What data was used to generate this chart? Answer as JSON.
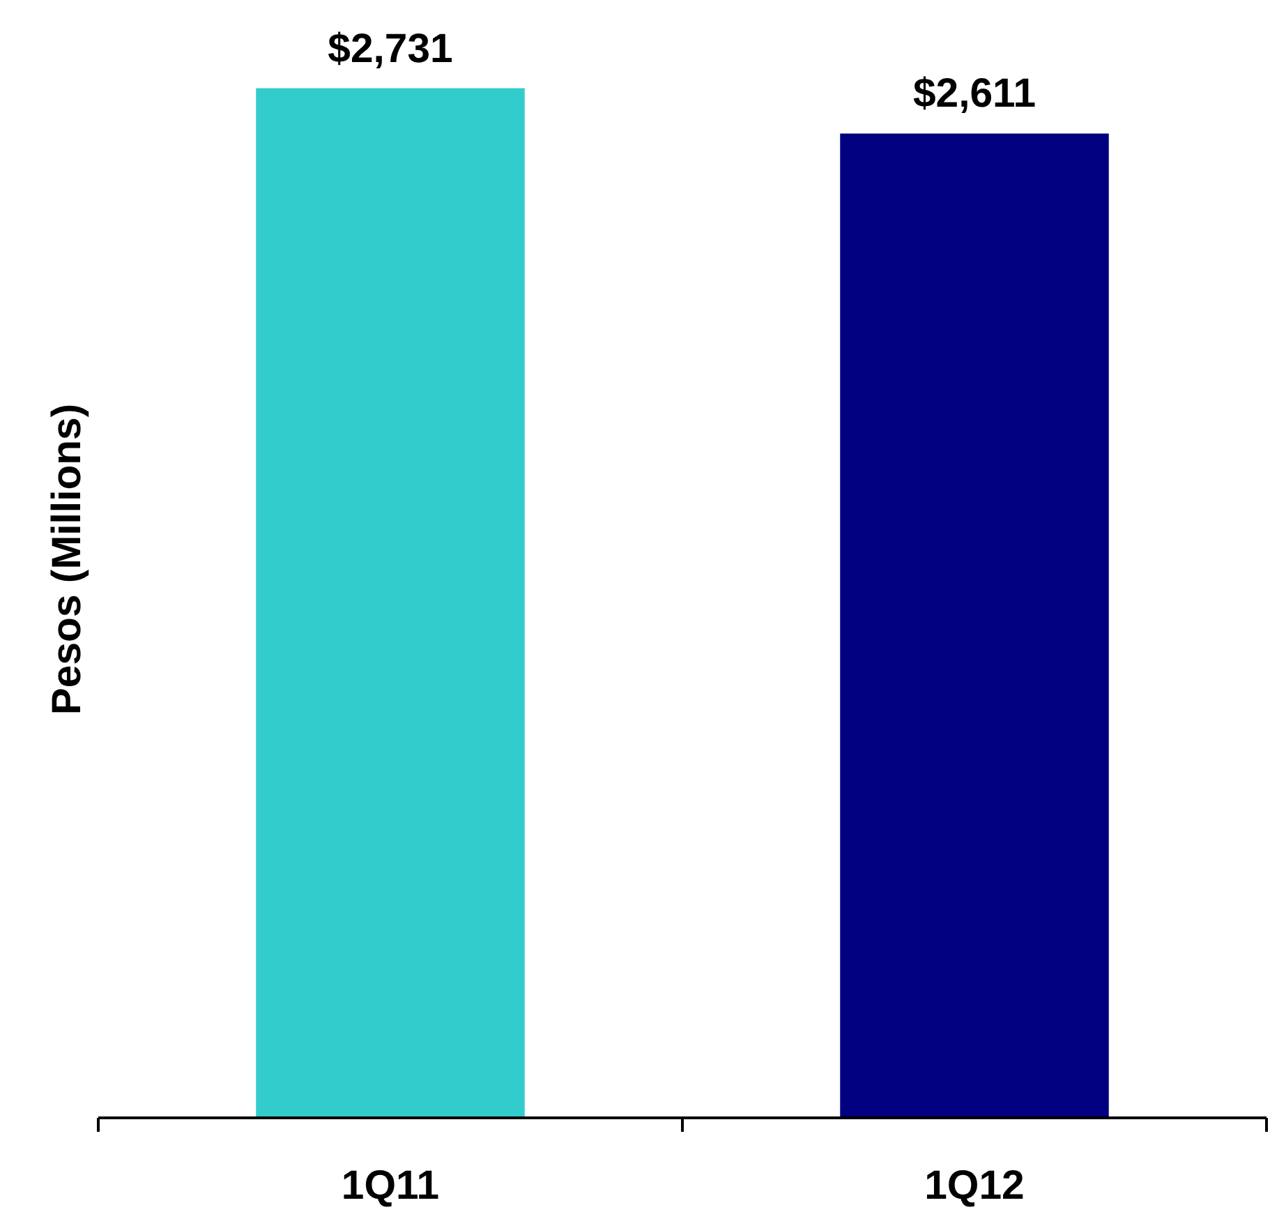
{
  "chart_data": {
    "type": "bar",
    "ylabel": "Pesos (Millions)",
    "categories": [
      "1Q11",
      "1Q12"
    ],
    "values": [
      2731,
      2611
    ],
    "colors": [
      "#33cccc",
      "#000080"
    ],
    "value_labels": [
      "$2,731",
      "$2,611"
    ],
    "tick_labels": "x"
  }
}
